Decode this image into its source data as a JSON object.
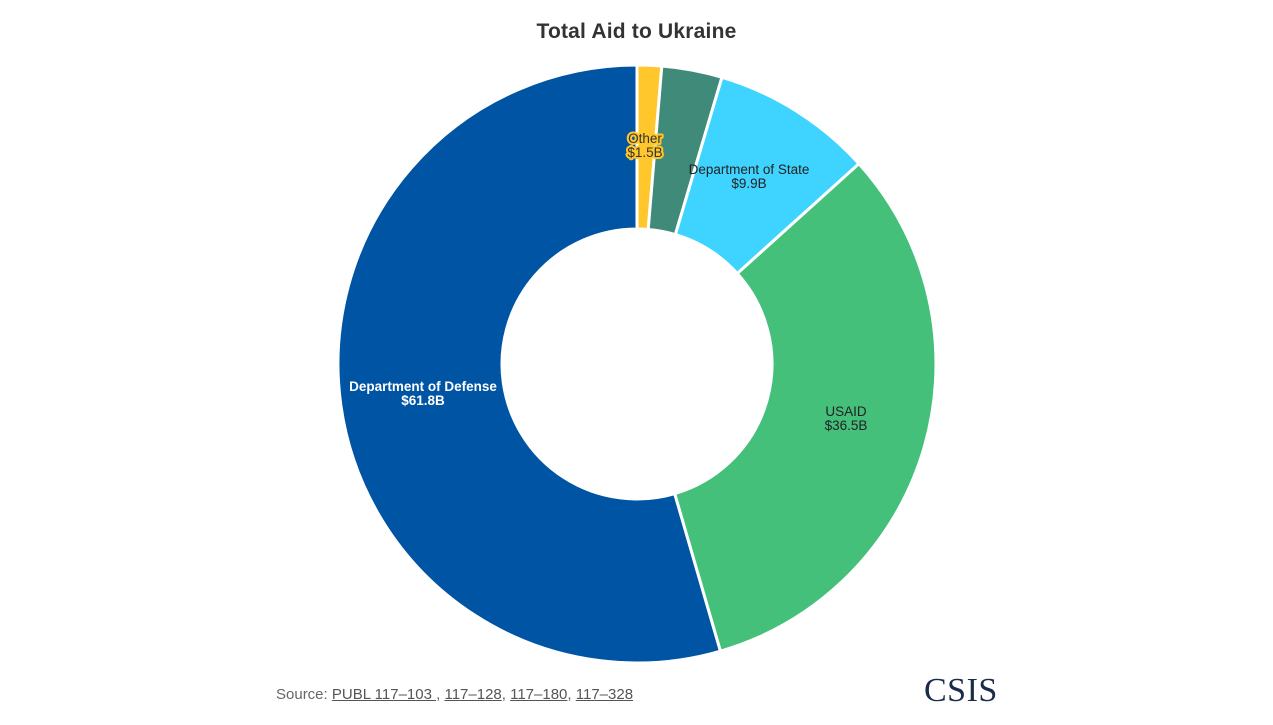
{
  "chart_data": {
    "type": "pie",
    "title": "Total Aid to Ukraine",
    "donut": true,
    "slices": [
      {
        "label": "Other",
        "value_label": "$1.5B",
        "value": 1.5,
        "color": "#ffc72c",
        "label_color": "#333333",
        "label_halo": "#ffc72c"
      },
      {
        "label": "",
        "value_label": "",
        "value": 3.7,
        "color": "#3f8a79",
        "label_color": "",
        "label_halo": ""
      },
      {
        "label": "Department of State",
        "value_label": "$9.9B",
        "value": 9.9,
        "color": "#3fd4ff",
        "label_color": "#222222",
        "label_halo": ""
      },
      {
        "label": "USAID",
        "value_label": "$36.5B",
        "value": 36.5,
        "color": "#45c07b",
        "label_color": "#222222",
        "label_halo": ""
      },
      {
        "label": "Department of Defense",
        "value_label": "$61.8B",
        "value": 61.8,
        "color": "#0054a4",
        "label_color": "#ffffff",
        "label_halo": ""
      }
    ]
  },
  "footer": {
    "source_prefix": "Source: ",
    "links": [
      "PUBL 117–103 ",
      "117–128",
      "117–180",
      "117–328"
    ],
    "separators": [
      ", ",
      ", ",
      ", "
    ]
  },
  "brand": {
    "logo_text": "CSIS"
  }
}
